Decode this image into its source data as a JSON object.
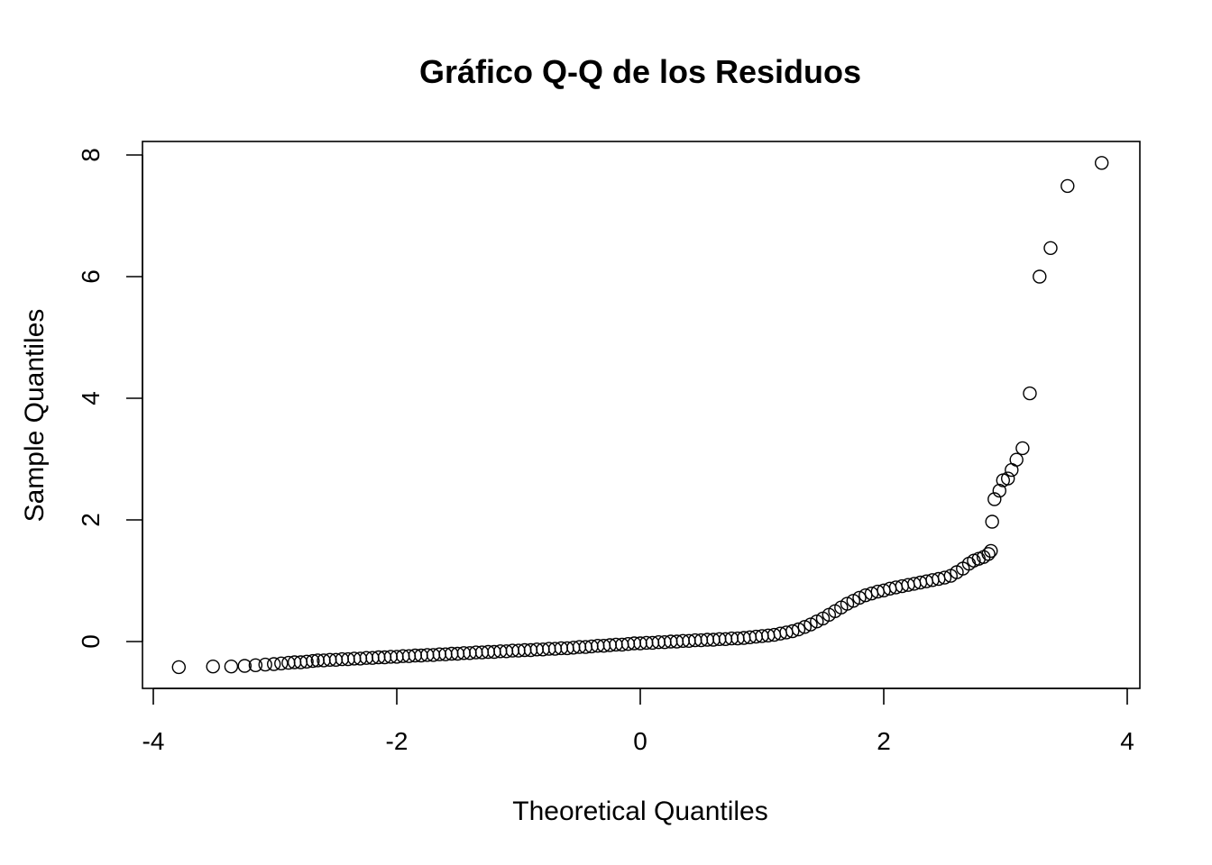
{
  "chart_data": {
    "type": "scatter",
    "title": "Gráfico Q-Q de los Residuos",
    "xlabel": "Theoretical Quantiles",
    "ylabel": "Sample Quantiles",
    "xlim": [
      -4.1,
      4.1
    ],
    "ylim": [
      -0.75,
      8.2
    ],
    "xticks": [
      -4,
      -2,
      0,
      2,
      4
    ],
    "yticks": [
      0,
      2,
      4,
      6,
      8
    ],
    "grid": false,
    "legend": "none",
    "point_style": "open-circle",
    "points": [
      [
        -3.79,
        -0.42
      ],
      [
        -3.51,
        -0.41
      ],
      [
        -3.36,
        -0.41
      ],
      [
        -3.25,
        -0.4
      ],
      [
        -3.16,
        -0.39
      ],
      [
        -3.08,
        -0.38
      ],
      [
        -3.01,
        -0.37
      ],
      [
        -2.95,
        -0.36
      ],
      [
        -2.89,
        -0.35
      ],
      [
        -2.84,
        -0.34
      ],
      [
        -2.79,
        -0.34
      ],
      [
        -2.74,
        -0.33
      ],
      [
        -2.69,
        -0.32
      ],
      [
        -2.65,
        -0.31
      ],
      [
        -2.6,
        -0.31
      ],
      [
        -2.55,
        -0.3
      ],
      [
        -2.5,
        -0.3
      ],
      [
        -2.45,
        -0.29
      ],
      [
        -2.4,
        -0.29
      ],
      [
        -2.35,
        -0.28
      ],
      [
        -2.3,
        -0.28
      ],
      [
        -2.25,
        -0.27
      ],
      [
        -2.2,
        -0.27
      ],
      [
        -2.15,
        -0.26
      ],
      [
        -2.1,
        -0.26
      ],
      [
        -2.05,
        -0.25
      ],
      [
        -2.0,
        -0.25
      ],
      [
        -1.95,
        -0.24
      ],
      [
        -1.9,
        -0.24
      ],
      [
        -1.85,
        -0.23
      ],
      [
        -1.8,
        -0.23
      ],
      [
        -1.75,
        -0.22
      ],
      [
        -1.7,
        -0.22
      ],
      [
        -1.65,
        -0.21
      ],
      [
        -1.6,
        -0.21
      ],
      [
        -1.55,
        -0.2
      ],
      [
        -1.5,
        -0.2
      ],
      [
        -1.45,
        -0.19
      ],
      [
        -1.4,
        -0.19
      ],
      [
        -1.35,
        -0.18
      ],
      [
        -1.3,
        -0.18
      ],
      [
        -1.25,
        -0.17
      ],
      [
        -1.2,
        -0.17
      ],
      [
        -1.15,
        -0.16
      ],
      [
        -1.1,
        -0.16
      ],
      [
        -1.05,
        -0.15
      ],
      [
        -1.0,
        -0.15
      ],
      [
        -0.95,
        -0.14
      ],
      [
        -0.9,
        -0.14
      ],
      [
        -0.85,
        -0.13
      ],
      [
        -0.8,
        -0.13
      ],
      [
        -0.75,
        -0.12
      ],
      [
        -0.7,
        -0.12
      ],
      [
        -0.65,
        -0.11
      ],
      [
        -0.6,
        -0.11
      ],
      [
        -0.55,
        -0.1
      ],
      [
        -0.5,
        -0.09
      ],
      [
        -0.45,
        -0.09
      ],
      [
        -0.4,
        -0.08
      ],
      [
        -0.35,
        -0.07
      ],
      [
        -0.3,
        -0.07
      ],
      [
        -0.25,
        -0.06
      ],
      [
        -0.2,
        -0.05
      ],
      [
        -0.15,
        -0.05
      ],
      [
        -0.1,
        -0.04
      ],
      [
        -0.05,
        -0.03
      ],
      [
        0.0,
        -0.03
      ],
      [
        0.05,
        -0.02
      ],
      [
        0.1,
        -0.02
      ],
      [
        0.15,
        -0.01
      ],
      [
        0.2,
        -0.01
      ],
      [
        0.25,
        0.0
      ],
      [
        0.3,
        0.0
      ],
      [
        0.35,
        0.01
      ],
      [
        0.4,
        0.01
      ],
      [
        0.45,
        0.02
      ],
      [
        0.5,
        0.02
      ],
      [
        0.55,
        0.03
      ],
      [
        0.6,
        0.03
      ],
      [
        0.65,
        0.04
      ],
      [
        0.7,
        0.04
      ],
      [
        0.75,
        0.05
      ],
      [
        0.8,
        0.05
      ],
      [
        0.85,
        0.06
      ],
      [
        0.9,
        0.07
      ],
      [
        0.95,
        0.08
      ],
      [
        1.0,
        0.09
      ],
      [
        1.05,
        0.1
      ],
      [
        1.1,
        0.11
      ],
      [
        1.15,
        0.13
      ],
      [
        1.2,
        0.15
      ],
      [
        1.25,
        0.17
      ],
      [
        1.3,
        0.2
      ],
      [
        1.35,
        0.24
      ],
      [
        1.4,
        0.28
      ],
      [
        1.45,
        0.33
      ],
      [
        1.5,
        0.38
      ],
      [
        1.55,
        0.44
      ],
      [
        1.6,
        0.5
      ],
      [
        1.65,
        0.56
      ],
      [
        1.7,
        0.62
      ],
      [
        1.75,
        0.67
      ],
      [
        1.8,
        0.72
      ],
      [
        1.85,
        0.76
      ],
      [
        1.9,
        0.79
      ],
      [
        1.95,
        0.82
      ],
      [
        2.0,
        0.84
      ],
      [
        2.05,
        0.87
      ],
      [
        2.1,
        0.89
      ],
      [
        2.15,
        0.91
      ],
      [
        2.2,
        0.93
      ],
      [
        2.25,
        0.95
      ],
      [
        2.3,
        0.97
      ],
      [
        2.35,
        0.99
      ],
      [
        2.4,
        1.01
      ],
      [
        2.45,
        1.03
      ],
      [
        2.5,
        1.05
      ],
      [
        2.55,
        1.08
      ],
      [
        2.6,
        1.14
      ],
      [
        2.65,
        1.2
      ],
      [
        2.7,
        1.28
      ],
      [
        2.74,
        1.33
      ],
      [
        2.78,
        1.36
      ],
      [
        2.82,
        1.39
      ],
      [
        2.86,
        1.44
      ],
      [
        2.88,
        1.49
      ],
      [
        2.89,
        1.97
      ],
      [
        2.91,
        2.34
      ],
      [
        2.95,
        2.48
      ],
      [
        2.98,
        2.65
      ],
      [
        3.02,
        2.68
      ],
      [
        3.05,
        2.82
      ],
      [
        3.09,
        2.99
      ],
      [
        3.14,
        3.18
      ],
      [
        3.2,
        4.08
      ],
      [
        3.28,
        6.0
      ],
      [
        3.37,
        6.47
      ],
      [
        3.51,
        7.49
      ],
      [
        3.79,
        7.87
      ]
    ]
  }
}
